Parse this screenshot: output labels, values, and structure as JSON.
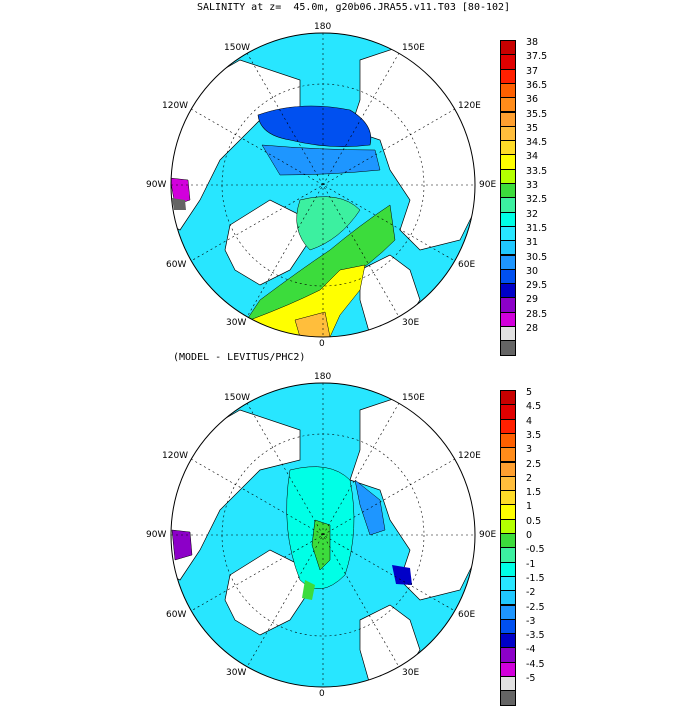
{
  "panels": [
    {
      "title": "SALINITY at z=  45.0m, g20b06.JRA55.v11.T03 [80-102]",
      "lon_labels": {
        "top": "180",
        "tl": "150W",
        "tr": "150E",
        "ul": "120W",
        "ur": "120E",
        "l": "90W",
        "r": "90E",
        "ll": "60W",
        "lr": "60E",
        "bl": "30W",
        "br": "30E",
        "bottom": "0"
      },
      "colorbar": {
        "labels": [
          "38",
          "37.5",
          "37",
          "36.5",
          "36",
          "35.5",
          "35",
          "34.5",
          "34",
          "33.5",
          "33",
          "32.5",
          "32",
          "31.5",
          "31",
          "30.5",
          "30",
          "29.5",
          "29",
          "28.5",
          "28"
        ],
        "colors": [
          "#c80000",
          "#e00000",
          "#ff2000",
          "#ff6000",
          "#ff8c1a",
          "#ffa030",
          "#ffbe3c",
          "#ffdc28",
          "#ffff00",
          "#b4ff00",
          "#3cdc3c",
          "#3cf0a0",
          "#00ffe6",
          "#28e6ff",
          "#20c8ff",
          "#1e96ff",
          "#0050f0",
          "#0000c8",
          "#8c00c8",
          "#d200dc",
          "#e1e1e1",
          "#646464"
        ]
      },
      "ocean_color": "#00ffe6"
    },
    {
      "title": "(MODEL - LEVITUS/PHC2)",
      "lon_labels": {
        "top": "180",
        "tl": "150W",
        "tr": "150E",
        "ul": "120W",
        "ur": "120E",
        "l": "90W",
        "r": "90E",
        "ll": "60W",
        "lr": "60E",
        "bl": "30W",
        "br": "30E",
        "bottom": "0"
      },
      "colorbar": {
        "labels": [
          "5",
          "4.5",
          "4",
          "3.5",
          "3",
          "2.5",
          "2",
          "1.5",
          "1",
          "0.5",
          "0",
          "-0.5",
          "-1",
          "-1.5",
          "-2",
          "-2.5",
          "-3",
          "-3.5",
          "-4",
          "-4.5",
          "-5"
        ],
        "colors": [
          "#c80000",
          "#e00000",
          "#ff2000",
          "#ff6000",
          "#ff8c1a",
          "#ffa030",
          "#ffbe3c",
          "#ffdc28",
          "#ffff00",
          "#b4ff00",
          "#3cdc3c",
          "#3cf0a0",
          "#00ffe6",
          "#28e6ff",
          "#20c8ff",
          "#1e96ff",
          "#0050f0",
          "#0000c8",
          "#8c00c8",
          "#d200dc",
          "#e1e1e1",
          "#646464"
        ]
      },
      "ocean_color": "#00ffe6"
    }
  ]
}
